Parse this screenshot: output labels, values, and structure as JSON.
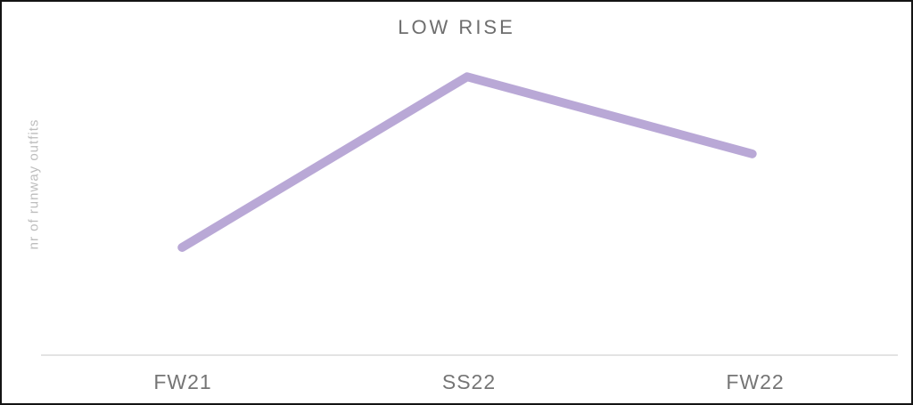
{
  "window": {
    "background_color": "#ffffff",
    "border_color": "#141414"
  },
  "chart_data": {
    "type": "line",
    "title": "LOW RISE",
    "xlabel": "",
    "ylabel": "nr of runway outfits",
    "categories": [
      "FW21",
      "SS22",
      "FW22"
    ],
    "values": [
      38,
      100,
      72
    ],
    "ylim": [
      0,
      100
    ],
    "grid": false,
    "legend": false,
    "y_ticks_shown": false,
    "line_color": "#b9a8d6",
    "line_width": 10,
    "axis_line_color": "#e3e3e3",
    "title_color": "#6e6e6e",
    "tick_label_color": "#757575",
    "ylabel_color": "#bdbdbd"
  }
}
